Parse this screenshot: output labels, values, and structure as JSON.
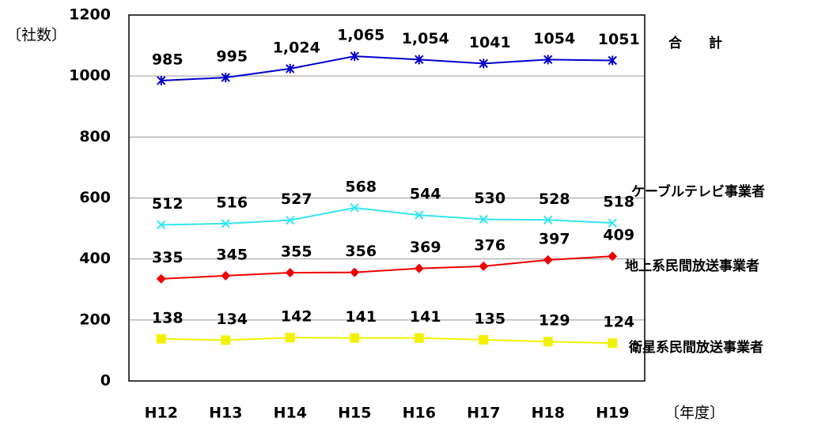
{
  "chart_data": {
    "type": "line",
    "y_label": "〔社数〕",
    "x_label": "〔年度〕",
    "categories": [
      "H12",
      "H13",
      "H14",
      "H15",
      "H16",
      "H17",
      "H18",
      "H19"
    ],
    "series": [
      {
        "name": "合　　計",
        "color": "#0000cc",
        "marker": "asterisk",
        "values": [
          985,
          995,
          1024,
          1065,
          1054,
          1041,
          1054,
          1051
        ],
        "value_labels": [
          "985",
          "995",
          "1,024",
          "1,065",
          "1,054",
          "1041",
          "1054",
          "1051"
        ]
      },
      {
        "name": "ケーブルテレビ事業者",
        "color": "#33e6f0",
        "marker": "x",
        "values": [
          512,
          516,
          527,
          568,
          544,
          530,
          528,
          518
        ]
      },
      {
        "name": "地上系民間放送事業者",
        "color": "#ee0000",
        "marker": "diamond",
        "values": [
          335,
          345,
          355,
          356,
          369,
          376,
          397,
          409
        ]
      },
      {
        "name": "衛星系民間放送事業者",
        "color": "#f2f200",
        "marker": "square",
        "values": [
          138,
          134,
          142,
          141,
          141,
          135,
          129,
          124
        ]
      }
    ],
    "ylim": [
      0,
      1200
    ],
    "yticks": [
      0,
      200,
      400,
      600,
      800,
      1000,
      1200
    ],
    "grid": true
  }
}
